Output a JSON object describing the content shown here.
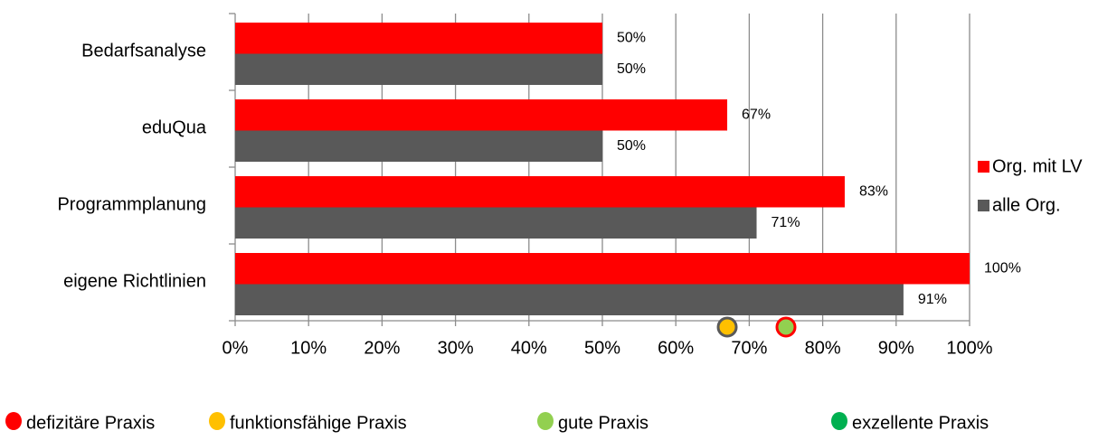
{
  "chart_data": {
    "type": "bar",
    "orientation": "horizontal",
    "categories": [
      "Bedarfsanalyse",
      "eduQua",
      "Programmplanung",
      "eigene Richtlinien"
    ],
    "series": [
      {
        "name": "Org. mit LV",
        "color": "#ff0000",
        "values": [
          50,
          67,
          83,
          100
        ],
        "value_labels": [
          "50%",
          "67%",
          "83%",
          "100%"
        ]
      },
      {
        "name": "alle Org.",
        "color": "#595959",
        "values": [
          50,
          50,
          71,
          91
        ],
        "value_labels": [
          "50%",
          "50%",
          "71%",
          "91%"
        ]
      }
    ],
    "xlim": [
      0,
      100
    ],
    "xticks": [
      {
        "value": 0,
        "label": "0%"
      },
      {
        "value": 10,
        "label": "10%"
      },
      {
        "value": 20,
        "label": "20%"
      },
      {
        "value": 30,
        "label": "30%"
      },
      {
        "value": 40,
        "label": "40%"
      },
      {
        "value": 50,
        "label": "50%"
      },
      {
        "value": 60,
        "label": "60%"
      },
      {
        "value": 70,
        "label": "70%"
      },
      {
        "value": 80,
        "label": "80%"
      },
      {
        "value": 90,
        "label": "90%"
      },
      {
        "value": 100,
        "label": "100%"
      }
    ],
    "grid": true,
    "legend": "right",
    "markers": [
      {
        "value": 67,
        "fill": "#ffc000",
        "stroke": "#595959"
      },
      {
        "value": 75,
        "fill": "#92d050",
        "stroke": "#ff0000"
      }
    ],
    "rating_legend": [
      {
        "label": "defizitäre Praxis",
        "color": "#ff0000"
      },
      {
        "label": "funktionsfähige Praxis",
        "color": "#ffc000"
      },
      {
        "label": "gute Praxis",
        "color": "#92d050"
      },
      {
        "label": "exzellente Praxis",
        "color": "#00b050"
      }
    ]
  }
}
